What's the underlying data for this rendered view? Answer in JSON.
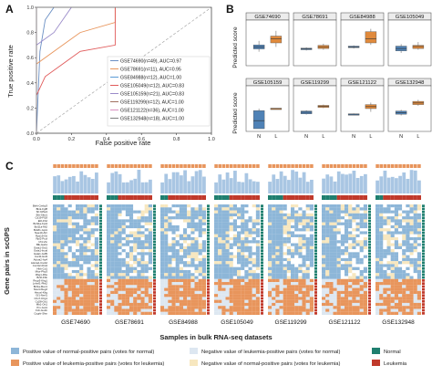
{
  "colors": {
    "normal_pos": "#8db6d8",
    "leuk_pos": "#e8955c",
    "neg_leuk": "#dde7f1",
    "neg_norm": "#f7e7bf",
    "normal": "#1f7f6f",
    "leukemia": "#c0392b",
    "box_normal": "#4f82b6",
    "box_leuk": "#e08a3c"
  },
  "panels": {
    "A": "A",
    "B": "B",
    "C": "C"
  },
  "panel_a": {
    "title": "",
    "xlabel": "False positive rate",
    "ylabel": "True positive rate",
    "xticks": [
      "0.0",
      "0.2",
      "0.4",
      "0.6",
      "0.8",
      "1.0"
    ],
    "yticks": [
      "0.0",
      "0.2",
      "0.4",
      "0.6",
      "0.8",
      "1.0"
    ],
    "legend": [
      "GSE74690(n=49), AUC=0.97",
      "GSE78691(n=11), AUC=0.95",
      "GSE84988(n=12), AUC=1.00",
      "GSE105049(n=12), AUC=0.83",
      "GSE105159(n=21), AUC=0.83",
      "GSE119299(n=12), AUC=1.00",
      "GSE121122(n=36), AUC=1.00",
      "GSE132948(n=18), AUC=1.00"
    ],
    "series_colors": [
      "#6a8fc4",
      "#e8955c",
      "#5b9bd5",
      "#e05a5a",
      "#9a8bc9",
      "#a07060",
      "#d98fc0",
      "#7f7f7f"
    ]
  },
  "panel_b": {
    "ylabel": "Predicted score",
    "xticks": [
      "N",
      "L"
    ],
    "datasets": [
      "GSE74690",
      "GSE78691",
      "GSE84988",
      "GSE105049",
      "GSE105159",
      "GSE119299",
      "GSE121122",
      "GSE132948"
    ]
  },
  "panel_c": {
    "ylabel": "Gene pairs in scGPS",
    "xlabel": "Samples in bulk RNA-seq datasets",
    "datasets": [
      "GSE74690",
      "GSE78691",
      "GSE84988",
      "GSE105049",
      "GSE119299",
      "GSE121122",
      "GSE132948"
    ],
    "genes": [
      "Blnk-Crebp3",
      "Blnk-Fgf8",
      "Sfr-Nt5e3",
      "Eth-Skiv1",
      "Cd19-Fl18",
      "Ebf-Fh2",
      "Bcl11a-Kpt4",
      "Bcl11a-Mt2",
      "Bcl2l1-Gpt1",
      "Nae10-Ahr",
      "Rps19-Gtl",
      "Rpl2-Pcol",
      "Irf4-Vtn",
      "Blk-Gab1",
      "Gata1-Gid1",
      "Gata1-Incal",
      "Gata1-Gdf9",
      "Cxcl2-Gsl3",
      "Adora2-Ap4",
      "Adora2-Creb2",
      "Cxcl12-Flnt4",
      "Hbb-Cd1",
      "Mtor-Pkp3",
      "Rbg1-Rbs",
      "Bcl2-Fbb",
      "Rngr3-Klrg1",
      "Lnhnf1-Pkk2",
      "Bcl1a-Mec1",
      "Nou4-Kleg2",
      "Hmoxl-Klrg",
      "Gf1-Nerf1",
      "Chx7-Klrg1",
      "Cd28-Gb1",
      "Mb1-Ort1",
      "Pm-Gut1",
      "Fcb-Gu1b",
      "Cugrb-Sfsn"
    ],
    "legend": [
      "Positive value of normal-positive pairs (votes for normal)",
      "Negative value of leukemia-positive pairs (votes for normal)",
      "Positive value of leukemia-positive pairs (votes for leukemia)",
      "Negative value of normal-positive pairs (votes for leukemia)"
    ],
    "class_legend": [
      "Normal",
      "Leukemia"
    ]
  },
  "chart_data": [
    {
      "type": "line",
      "title": "",
      "xlabel": "False positive rate",
      "ylabel": "True positive rate",
      "xlim": [
        0,
        1
      ],
      "ylim": [
        0,
        1
      ],
      "grid": false,
      "legend_position": "bottom-right",
      "series": [
        {
          "name": "GSE74690(n=49), AUC=0.97",
          "x": [
            0,
            0.02,
            0.05,
            0.1,
            1
          ],
          "y": [
            0,
            0.65,
            0.9,
            1,
            1
          ]
        },
        {
          "name": "GSE78691(n=11), AUC=0.95",
          "x": [
            0,
            0,
            0.15,
            0.25,
            0.45,
            0.45,
            1
          ],
          "y": [
            0,
            0.55,
            0.7,
            0.8,
            0.88,
            1,
            1
          ]
        },
        {
          "name": "GSE84988(n=12), AUC=1.00",
          "x": [
            0,
            0,
            1
          ],
          "y": [
            0,
            1,
            1
          ]
        },
        {
          "name": "GSE105049(n=12), AUC=0.83",
          "x": [
            0,
            0,
            0.05,
            0.15,
            0.25,
            0.45,
            0.45,
            1
          ],
          "y": [
            0,
            0.3,
            0.45,
            0.55,
            0.65,
            0.7,
            1,
            1
          ]
        },
        {
          "name": "GSE105159(n=21), AUC=0.83",
          "x": [
            0,
            0,
            0.1,
            0.2,
            1
          ],
          "y": [
            0,
            0.7,
            0.8,
            1,
            1
          ]
        },
        {
          "name": "GSE119299(n=12), AUC=1.00",
          "x": [
            0,
            0,
            1
          ],
          "y": [
            0,
            1,
            1
          ]
        },
        {
          "name": "GSE121122(n=36), AUC=1.00",
          "x": [
            0,
            0,
            1
          ],
          "y": [
            0,
            1,
            1
          ]
        },
        {
          "name": "GSE132948(n=18), AUC=1.00",
          "x": [
            0,
            0,
            1
          ],
          "y": [
            0,
            1,
            1
          ]
        }
      ]
    },
    {
      "type": "box",
      "ylabel": "Predicted score",
      "categories": [
        "N",
        "L"
      ],
      "panels": [
        {
          "name": "GSE74690",
          "N": {
            "q1": 0.35,
            "med": 0.4,
            "q3": 0.45,
            "min": 0.28,
            "max": 0.55
          },
          "L": {
            "q1": 0.5,
            "med": 0.6,
            "q3": 0.67,
            "min": 0.4,
            "max": 0.8
          }
        },
        {
          "name": "GSE78691",
          "N": {
            "q1": 0.33,
            "med": 0.35,
            "q3": 0.37,
            "min": 0.31,
            "max": 0.39
          },
          "L": {
            "q1": 0.36,
            "med": 0.4,
            "q3": 0.44,
            "min": 0.33,
            "max": 0.48
          }
        },
        {
          "name": "GSE84988",
          "N": {
            "q1": 0.38,
            "med": 0.4,
            "q3": 0.42,
            "min": 0.36,
            "max": 0.44
          },
          "L": {
            "q1": 0.5,
            "med": 0.6,
            "q3": 0.78,
            "min": 0.45,
            "max": 0.85
          }
        },
        {
          "name": "GSE105049",
          "N": {
            "q1": 0.3,
            "med": 0.36,
            "q3": 0.42,
            "min": 0.25,
            "max": 0.47
          },
          "L": {
            "q1": 0.36,
            "med": 0.41,
            "q3": 0.44,
            "min": 0.33,
            "max": 0.52
          }
        },
        {
          "name": "GSE105159",
          "N": {
            "q1": 0.0,
            "med": 0.2,
            "q3": 0.45,
            "min": 0.0,
            "max": 0.5
          },
          "L": {
            "q1": 0.49,
            "med": 0.5,
            "q3": 0.51,
            "min": 0.49,
            "max": 0.51
          }
        },
        {
          "name": "GSE119299",
          "N": {
            "q1": 0.37,
            "med": 0.41,
            "q3": 0.44,
            "min": 0.35,
            "max": 0.46
          },
          "L": {
            "q1": 0.53,
            "med": 0.56,
            "q3": 0.58,
            "min": 0.51,
            "max": 0.6
          }
        },
        {
          "name": "GSE121122",
          "N": {
            "q1": 0.35,
            "med": 0.36,
            "q3": 0.37,
            "min": 0.34,
            "max": 0.38
          },
          "L": {
            "q1": 0.5,
            "med": 0.55,
            "q3": 0.6,
            "min": 0.42,
            "max": 0.65
          }
        },
        {
          "name": "GSE132948",
          "N": {
            "q1": 0.36,
            "med": 0.4,
            "q3": 0.44,
            "min": 0.33,
            "max": 0.47
          },
          "L": {
            "q1": 0.6,
            "med": 0.64,
            "q3": 0.68,
            "min": 0.57,
            "max": 0.72
          }
        }
      ]
    },
    {
      "type": "heatmap",
      "xlabel": "Samples in bulk RNA-seq datasets",
      "ylabel": "Gene pairs in scGPS",
      "categories": [
        "GSE74690",
        "GSE78691",
        "GSE84988",
        "GSE105049",
        "GSE119299",
        "GSE121122",
        "GSE132948"
      ],
      "rows": 37,
      "row_groups": [
        {
          "name": "normal-positive pairs",
          "rows": 25
        },
        {
          "name": "leukemia-positive pairs",
          "rows": 12
        }
      ],
      "legend": [
        "Positive value of normal-positive pairs (votes for normal)",
        "Negative value of leukemia-positive pairs (votes for normal)",
        "Positive value of leukemia-positive pairs (votes for leukemia)",
        "Negative value of normal-positive pairs (votes for leukemia)"
      ]
    }
  ]
}
